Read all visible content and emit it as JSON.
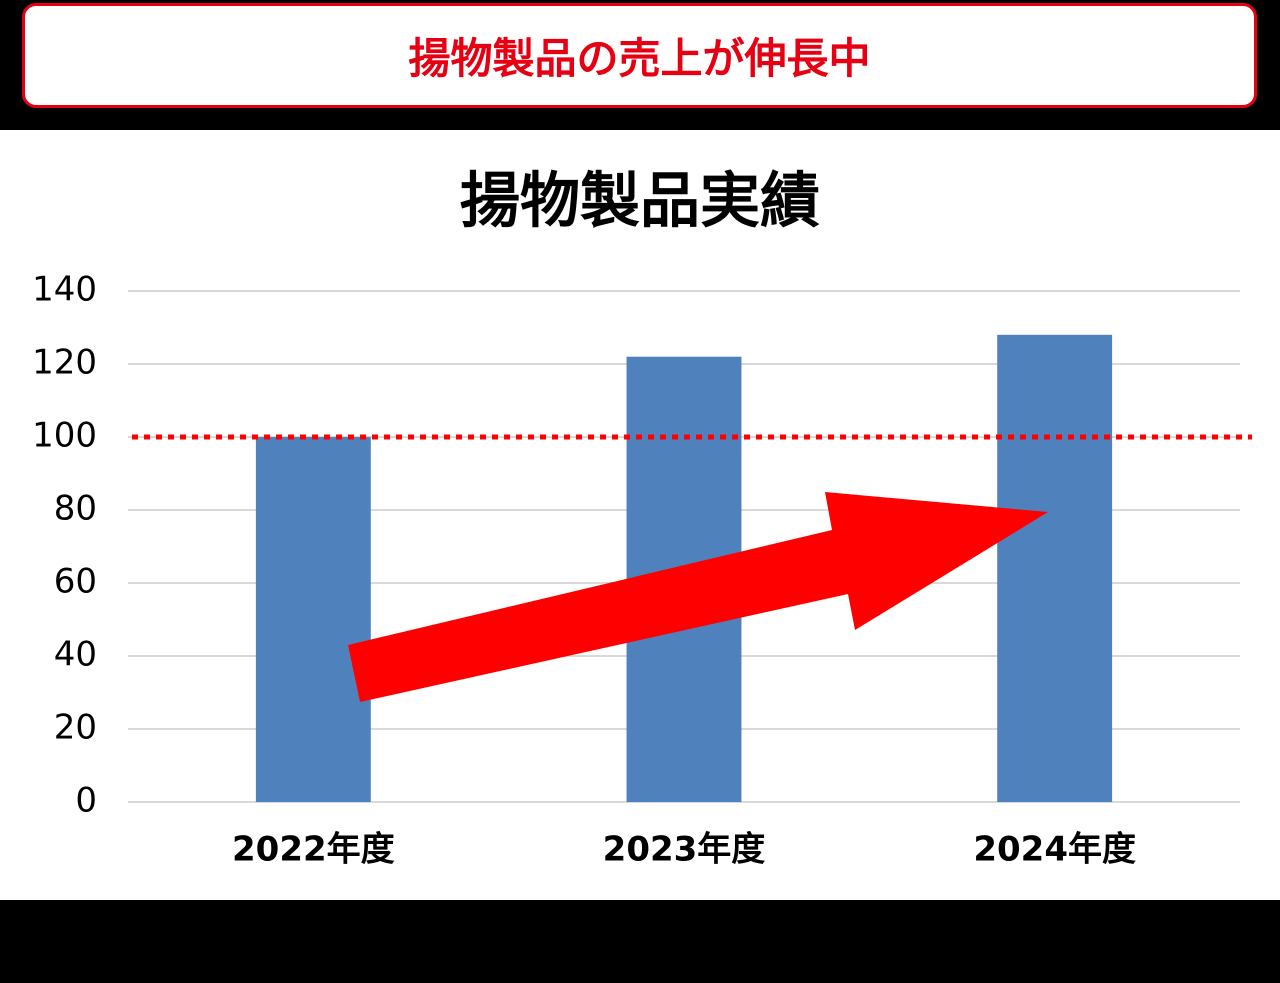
{
  "banner": {
    "text": "揚物製品の売上が伸長中"
  },
  "chart_data": {
    "type": "bar",
    "title": "揚物製品実績",
    "categories": [
      "2022年度",
      "2023年度",
      "2024年度"
    ],
    "values": [
      100,
      122,
      128
    ],
    "color": "#4f81bd",
    "ylim": [
      0,
      140
    ],
    "yticks": [
      0,
      20,
      40,
      60,
      80,
      100,
      120,
      140
    ],
    "grid": true,
    "reference_line": {
      "value": 100,
      "color": "#ff0000"
    }
  }
}
